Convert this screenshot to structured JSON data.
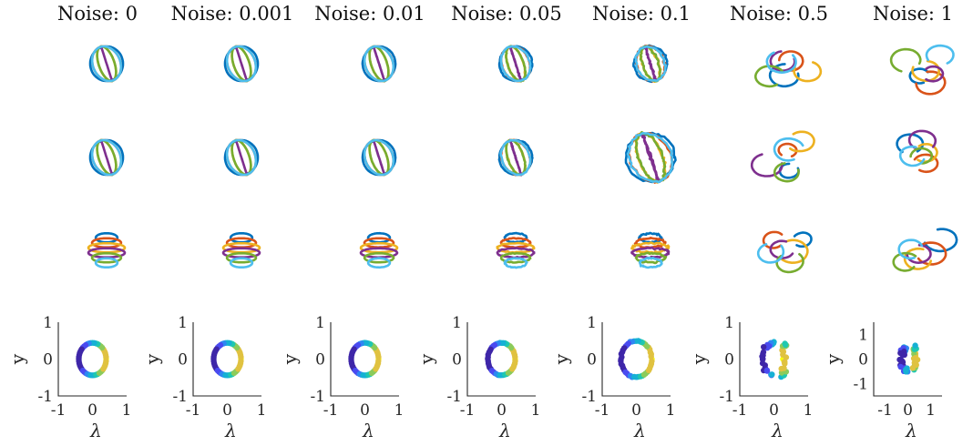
{
  "chart_data": {
    "type": "scatter",
    "panels_per_column": [
      "trajectory view 1",
      "trajectory view 2",
      "trajectory view 3",
      "embedding scatter"
    ],
    "columns": [
      {
        "title": "Noise: 0",
        "noise": 0,
        "xlim": [
          -1,
          1
        ],
        "ylim": [
          -1,
          1
        ],
        "xticks": [
          "-1",
          "0",
          "1"
        ],
        "yticks": [
          "-1",
          "0",
          "1"
        ],
        "scatter_radius": 0.4
      },
      {
        "title": "Noise: 0.001",
        "noise": 0.001,
        "xlim": [
          -1,
          1
        ],
        "ylim": [
          -1,
          1
        ],
        "xticks": [
          "-1",
          "0",
          "1"
        ],
        "yticks": [
          "-1",
          "0",
          "1"
        ],
        "scatter_radius": 0.4
      },
      {
        "title": "Noise: 0.01",
        "noise": 0.01,
        "xlim": [
          -1,
          1
        ],
        "ylim": [
          -1,
          1
        ],
        "xticks": [
          "-1",
          "0",
          "1"
        ],
        "yticks": [
          "-1",
          "0",
          "1"
        ],
        "scatter_radius": 0.4
      },
      {
        "title": "Noise: 0.05",
        "noise": 0.05,
        "xlim": [
          -1,
          1
        ],
        "ylim": [
          -1,
          1
        ],
        "xticks": [
          "-1",
          "0",
          "1"
        ],
        "yticks": [
          "-1",
          "0",
          "1"
        ],
        "scatter_radius": 0.4
      },
      {
        "title": "Noise: 0.1",
        "noise": 0.1,
        "xlim": [
          -1,
          1
        ],
        "ylim": [
          -1,
          1
        ],
        "xticks": [
          "-1",
          "0",
          "1"
        ],
        "yticks": [
          "-1",
          "0",
          "1"
        ],
        "scatter_radius": 0.45
      },
      {
        "title": "Noise: 0.5",
        "noise": 0.5,
        "xlim": [
          -1,
          1
        ],
        "ylim": [
          -1,
          1
        ],
        "xticks": [
          "-1",
          "0",
          "1"
        ],
        "yticks": [
          "-1",
          "0",
          "1"
        ],
        "scatter_radius": 0.4
      },
      {
        "title": "Noise: 1",
        "noise": 1,
        "xlim": [
          -1.5,
          1.5
        ],
        "ylim": [
          -1.5,
          1.5
        ],
        "xticks": [
          "-1",
          "0",
          "1"
        ],
        "yticks": [
          "-1",
          "0",
          "1"
        ],
        "scatter_radius": 0.4
      }
    ],
    "xlabel": "λ",
    "ylabel": "y",
    "grid": false,
    "legend": "none",
    "series_colors": [
      "#0072bd",
      "#d95319",
      "#edb120",
      "#7e2f8e",
      "#77ac30",
      "#4dbeee",
      "#a2142f"
    ],
    "scatter_colormap": [
      "#3e26a8",
      "#4a4bf0",
      "#2e87f2",
      "#15b1d4",
      "#1fc8b0",
      "#8bcb5b",
      "#e0c240",
      "#f9fb0e"
    ]
  }
}
